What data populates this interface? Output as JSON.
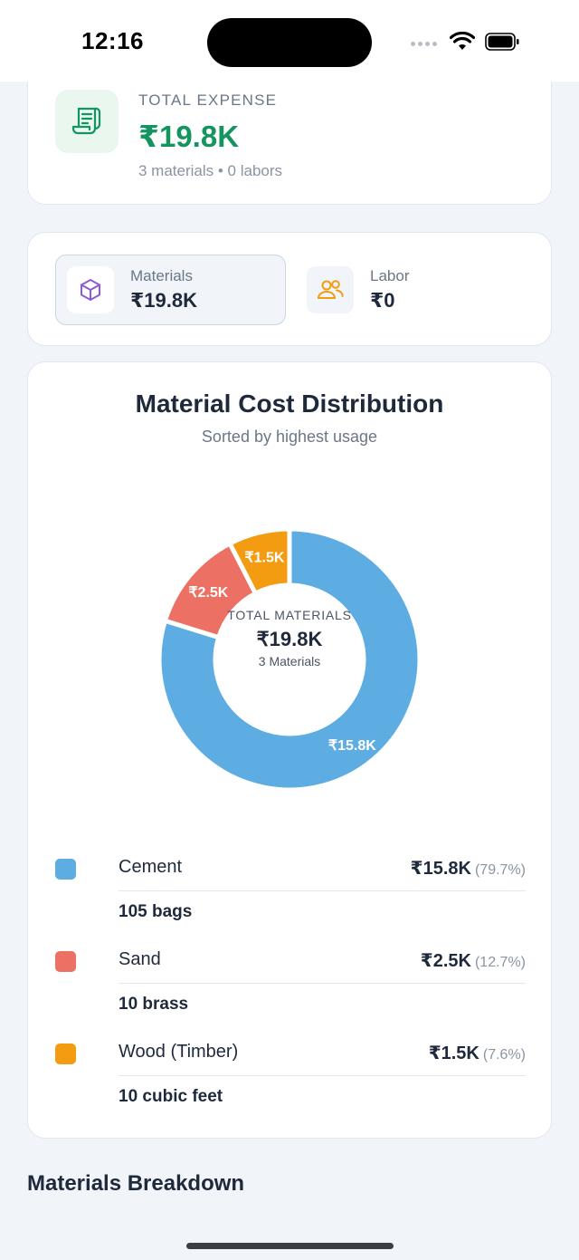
{
  "status_bar": {
    "time": "12:16"
  },
  "expense": {
    "label": "TOTAL EXPENSE",
    "value": "₹19.8K",
    "summary": "3 materials • 0 labors",
    "icon": "receipt-icon",
    "accent": "#14955f"
  },
  "tabs": [
    {
      "label": "Materials",
      "value": "₹19.8K",
      "icon": "cube-icon",
      "selected": true
    },
    {
      "label": "Labor",
      "value": "₹0",
      "icon": "users-icon",
      "selected": false
    }
  ],
  "chart_data": {
    "type": "pie",
    "title": "Material Cost Distribution",
    "subtitle": "Sorted by highest usage",
    "center": {
      "label": "TOTAL MATERIALS",
      "value": "₹19.8K",
      "count": "3 Materials"
    },
    "categories": [
      "Cement",
      "Sand",
      "Wood (Timber)"
    ],
    "values": [
      15.8,
      2.5,
      1.5
    ],
    "labels": [
      "₹15.8K",
      "₹2.5K",
      "₹1.5K"
    ],
    "percents": [
      "(79.7%)",
      "(12.7%)",
      "(7.6%)"
    ],
    "quantities": [
      "105 bags",
      "10 brass",
      "10 cubic feet"
    ],
    "colors": [
      "#5dade2",
      "#ec7063",
      "#f39c12"
    ],
    "legend": "bottom"
  },
  "breakdown": {
    "title": "Materials Breakdown"
  }
}
